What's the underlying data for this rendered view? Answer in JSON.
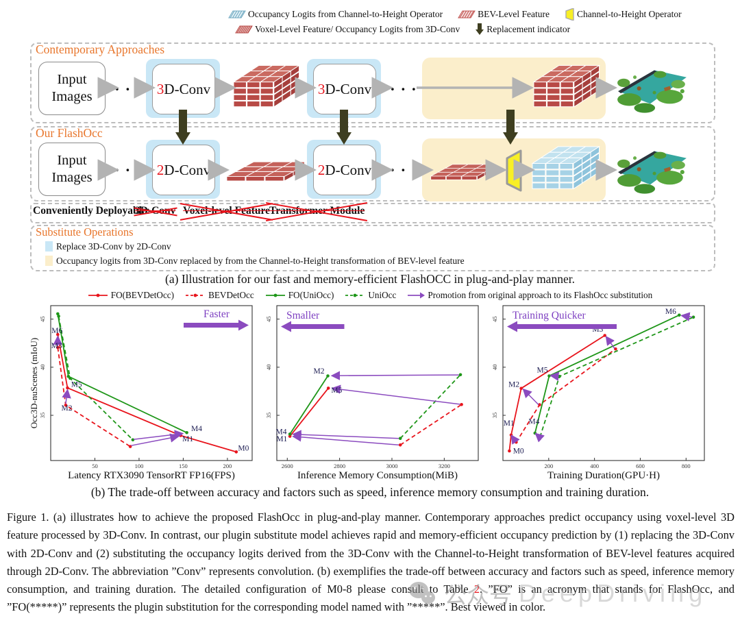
{
  "top_legend": {
    "row1": [
      {
        "icon": "hatch-blue",
        "label": "Occupancy Logits from Channel-to-Height Operator"
      },
      {
        "icon": "hatch-red",
        "label": "BEV-Level Feature"
      },
      {
        "icon": "c2h",
        "label": "Channel-to-Height Operator"
      }
    ],
    "row2": [
      {
        "icon": "hatch-red-dense",
        "label": "Voxel-Level Feature/ Occupancy Logits from 3D-Conv"
      },
      {
        "icon": "repl-arrow",
        "label": "Replacement indicator"
      }
    ]
  },
  "diagram": {
    "contemporary_title": "Contemporary Approaches",
    "flashocc_title": "Our FlashOcc",
    "input_box_line1": "Input",
    "input_box_line2": "Images",
    "conv3d_digit": "3",
    "conv3d_rest": "D-Conv",
    "conv2d_digit": "2",
    "conv2d_rest": "D-Conv",
    "dots": ". . .",
    "deployable_label": "Conveniently Deployable:",
    "deployable_items": [
      "3D-Conv",
      "Voxel-level Feature",
      "Transformer Module"
    ],
    "substitute_title": "Substitute Operations",
    "substitute_items": [
      {
        "color": "#c9e7f6",
        "label": "Replace 3D-Conv by 2D-Conv"
      },
      {
        "color": "#fbeecb",
        "label": "Occupancy logits from 3D-Conv replaced by from the Channel-to-Height transformation of BEV-level feature"
      }
    ],
    "caption_a": "(a) Illustration for our fast and memory-efficient FlashOCC in plug-and-play manner."
  },
  "chart_legend": [
    {
      "marker": "line-solid",
      "color": "#e8141c",
      "label": "FO(BEVDetOcc)"
    },
    {
      "marker": "line-dashed",
      "color": "#e8141c",
      "label": "BEVDetOcc"
    },
    {
      "marker": "line-solid",
      "color": "#1e9618",
      "label": "FO(UniOcc)"
    },
    {
      "marker": "line-dashed",
      "color": "#1e9618",
      "label": "UniOcc"
    },
    {
      "marker": "arrow",
      "color": "#8b4bbf",
      "label": "Promotion from original approach to its FlashOcc substitution"
    }
  ],
  "chart_data": [
    {
      "type": "line",
      "xlabel": "Latency RTX3090 TensorRT FP16(FPS)",
      "ylabel": "Occ3D-nuScenes (mIoU)",
      "xlim": [
        0,
        228
      ],
      "ylim": [
        30.3,
        46.4
      ],
      "xticks": [
        50,
        100,
        150,
        200
      ],
      "yticks": [
        35,
        40,
        45
      ],
      "annotation": {
        "text": "Faster",
        "direction": "right"
      },
      "series": [
        {
          "name": "FO(BEVDetOcc)",
          "color": "#e8141c",
          "style": "solid",
          "points": [
            [
              8,
              43.4
            ],
            [
              19,
              37.85
            ],
            [
              147,
              32.9
            ],
            [
              210,
              31.2
            ]
          ]
        },
        {
          "name": "BEVDetOcc",
          "color": "#e8141c",
          "style": "dashed",
          "points": [
            [
              8,
              42.05
            ],
            [
              17,
              36.05
            ],
            [
              90,
              31.75
            ]
          ]
        },
        {
          "name": "FO(UniOcc)",
          "color": "#1e9618",
          "style": "solid",
          "points": [
            [
              8,
              45.55
            ],
            [
              20,
              39.05
            ],
            [
              154,
              33.2
            ]
          ]
        },
        {
          "name": "UniOcc",
          "color": "#1e9618",
          "style": "dashed",
          "points": [
            [
              9,
              45.3
            ],
            [
              22,
              38.85
            ],
            [
              93,
              32.45
            ]
          ]
        }
      ],
      "arrows": [
        [
          [
            8,
            42.2
          ],
          [
            8,
            43.15
          ]
        ],
        [
          [
            17,
            36.2
          ],
          [
            19,
            37.6
          ]
        ],
        [
          [
            94,
            32.5
          ],
          [
            149,
            33.1
          ]
        ],
        [
          [
            91,
            31.85
          ],
          [
            144,
            32.8
          ]
        ]
      ],
      "point_labels": [
        {
          "text": "M6",
          "x": 1,
          "y": 43.55,
          "anchor": "start"
        },
        {
          "text": "M3",
          "x": 0.5,
          "y": 42.0,
          "anchor": "start"
        },
        {
          "text": "M5",
          "x": 23,
          "y": 37.95,
          "anchor": "start"
        },
        {
          "text": "M2",
          "x": 12,
          "y": 35.5,
          "anchor": "start"
        },
        {
          "text": "M4",
          "x": 159,
          "y": 33.35,
          "anchor": "start"
        },
        {
          "text": "M1",
          "x": 149,
          "y": 32.3,
          "anchor": "start"
        },
        {
          "text": "M0",
          "x": 212,
          "y": 31.35,
          "anchor": "start"
        }
      ]
    },
    {
      "type": "line",
      "xlabel": "Inference Memory Consumption(MiB)",
      "ylabel": "",
      "xlim": [
        2560,
        3330
      ],
      "ylim": [
        30.3,
        46.4
      ],
      "xticks": [
        2600,
        2800,
        3000,
        3200
      ],
      "yticks": [
        35,
        40,
        45
      ],
      "annotation": {
        "text": "Smaller",
        "direction": "left"
      },
      "series": [
        {
          "name": "FO(BEVDetOcc)",
          "color": "#e8141c",
          "style": "solid",
          "points": [
            [
              2610,
              32.82
            ],
            [
              2757,
              37.82
            ]
          ]
        },
        {
          "name": "BEVDetOcc",
          "color": "#e8141c",
          "style": "dashed",
          "points": [
            [
              3032,
              31.92
            ],
            [
              3266,
              36.12
            ]
          ]
        },
        {
          "name": "FO(UniOcc)",
          "color": "#1e9618",
          "style": "solid",
          "points": [
            [
              2610,
              33.05
            ],
            [
              2755,
              39.1
            ]
          ]
        },
        {
          "name": "UniOcc",
          "color": "#1e9618",
          "style": "dashed",
          "points": [
            [
              3032,
              32.6
            ],
            [
              3262,
              39.22
            ]
          ]
        }
      ],
      "arrows": [
        [
          [
            3256,
            39.2
          ],
          [
            2772,
            39.12
          ]
        ],
        [
          [
            3260,
            36.15
          ],
          [
            2774,
            37.8
          ]
        ],
        [
          [
            3026,
            32.6
          ],
          [
            2624,
            33.03
          ]
        ],
        [
          [
            3026,
            31.92
          ],
          [
            2624,
            32.8
          ]
        ]
      ],
      "point_labels": [
        {
          "text": "M2",
          "x": 2742,
          "y": 39.35,
          "anchor": "end"
        },
        {
          "text": "M5",
          "x": 2768,
          "y": 37.35,
          "anchor": "start"
        },
        {
          "text": "M4",
          "x": 2598,
          "y": 33.05,
          "anchor": "end"
        },
        {
          "text": "M1",
          "x": 2600,
          "y": 32.3,
          "anchor": "end"
        }
      ]
    },
    {
      "type": "line",
      "xlabel": "Training Duration(GPU·H)",
      "ylabel": "",
      "xlim": [
        0,
        880
      ],
      "ylim": [
        30.3,
        46.4
      ],
      "xticks": [
        200,
        400,
        600,
        800
      ],
      "yticks": [
        35,
        40,
        45
      ],
      "annotation": {
        "text": "Training Quicker",
        "direction": "left"
      },
      "series": [
        {
          "name": "FO(BEVDetOcc)",
          "color": "#e8141c",
          "style": "solid",
          "points": [
            [
              28,
              31.3
            ],
            [
              36,
              32.95
            ],
            [
              80,
              37.8
            ],
            [
              445,
              43.3
            ]
          ]
        },
        {
          "name": "BEVDetOcc",
          "color": "#e8141c",
          "style": "dashed",
          "points": [
            [
              58,
              32.2
            ],
            [
              160,
              36.1
            ],
            [
              492,
              41.9
            ]
          ]
        },
        {
          "name": "FO(UniOcc)",
          "color": "#1e9618",
          "style": "solid",
          "points": [
            [
              140,
              33.15
            ],
            [
              202,
              39.1
            ],
            [
              770,
              45.42
            ]
          ]
        },
        {
          "name": "UniOcc",
          "color": "#1e9618",
          "style": "dashed",
          "points": [
            [
              162,
              32.75
            ],
            [
              247,
              39.05
            ],
            [
              832,
              45.2
            ]
          ]
        }
      ],
      "arrows": [
        [
          [
            828,
            45.2
          ],
          [
            782,
            45.36
          ]
        ],
        [
          [
            488,
            41.95
          ],
          [
            452,
            43.14
          ]
        ],
        [
          [
            243,
            39.05
          ],
          [
            210,
            39.13
          ]
        ],
        [
          [
            156,
            36.1
          ],
          [
            90,
            37.68
          ]
        ],
        [
          [
            158,
            32.78
          ],
          [
            144,
            33.08
          ]
        ],
        [
          [
            56,
            32.25
          ],
          [
            38,
            32.88
          ]
        ]
      ],
      "point_labels": [
        {
          "text": "M6",
          "x": 757,
          "y": 45.55,
          "anchor": "end"
        },
        {
          "text": "M3",
          "x": 438,
          "y": 43.7,
          "anchor": "end"
        },
        {
          "text": "M5",
          "x": 196,
          "y": 39.45,
          "anchor": "end"
        },
        {
          "text": "M2",
          "x": 72,
          "y": 37.95,
          "anchor": "end"
        },
        {
          "text": "M1",
          "x": 2,
          "y": 33.95,
          "anchor": "start"
        },
        {
          "text": "M4",
          "x": 112,
          "y": 34.1,
          "anchor": "start"
        },
        {
          "text": "M0",
          "x": 44,
          "y": 31.05,
          "anchor": "start"
        }
      ]
    }
  ],
  "caption_b": "(b) The trade-off between accuracy and factors such as speed, inference memory consumption and training duration.",
  "figure_caption": {
    "part1": "Figure 1.  (a) illustrates how to achieve the proposed FlashOcc in plug-and-play manner. Contemporary approaches predict occupancy using voxel-level 3D feature processed by 3D-Conv.  In contrast, our plugin substitute model achieves rapid and memory-efficient occupancy prediction by (1) replacing the 3D-Conv with 2D-Conv and (2) substituting the occupancy logits derived from the 3D-Conv with the Channel-to-Height transformation of BEV-level features acquired through 2D-Conv. The abbreviation ”Conv” represents convolution. (b) exemplifies the trade-off between accuracy and factors such as speed, inference memory consumption, and training duration. The detailed configuration of M0-8 please consult to Table ",
    "table_ref": "2",
    "part2": ". ”FO” is an acronym that stands for FlashOcc, and ”FO(*****)” represents the plugin substitution for the corresponding model named with ”*****”. Best viewed in color."
  },
  "watermark": {
    "account": "公众号",
    "brand": "DeepDriving"
  },
  "colors": {
    "accent_orange": "#E8762C",
    "line_red": "#e8141c",
    "line_green": "#1e9618",
    "purple": "#8b4bbf",
    "highlight_blue": "#c9e7f6",
    "highlight_yellow": "#fbeecb",
    "voxel_red": "#b84a46",
    "voxel_blue": "#a6d2e6",
    "c2h_yellow": "#f8ef25"
  }
}
